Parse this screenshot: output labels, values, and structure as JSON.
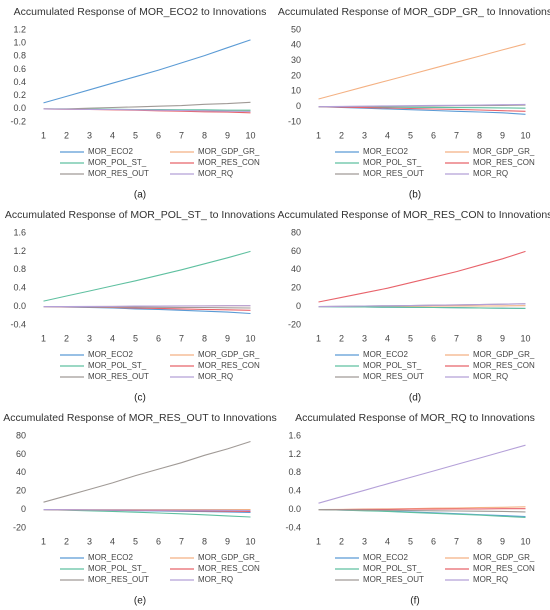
{
  "chart_data": [
    {
      "type": "line",
      "title": "Accumulated Response of MOR_ECO2 to Innovations",
      "caption": "(a)",
      "categories": [
        "1",
        "2",
        "3",
        "4",
        "5",
        "6",
        "7",
        "8",
        "9",
        "10"
      ],
      "ylim": [
        -0.2,
        1.2
      ],
      "yticks": [
        -0.2,
        {
          "value": 0,
          "label": "0.0"
        },
        0.2,
        0.4,
        0.6,
        0.8,
        {
          "value": 1,
          "label": "1.0"
        },
        1.2
      ],
      "grid": false,
      "legend": "bottom",
      "series": [
        {
          "name": "MOR_ECO2",
          "color": "#5b9bd5",
          "values": [
            0.09,
            0.19,
            0.29,
            0.39,
            0.49,
            0.59,
            0.7,
            0.81,
            0.93,
            1.05
          ]
        },
        {
          "name": "MOR_GDP_GR_",
          "color": "#f4b183",
          "values": [
            0,
            -0.005,
            -0.01,
            -0.01,
            -0.015,
            -0.02,
            -0.02,
            -0.025,
            -0.03,
            -0.03
          ]
        },
        {
          "name": "MOR_POL_ST_",
          "color": "#5fc0a0",
          "values": [
            0,
            0,
            -0.005,
            -0.005,
            -0.01,
            -0.01,
            -0.015,
            -0.015,
            -0.02,
            -0.02
          ]
        },
        {
          "name": "MOR_RES_CON",
          "color": "#e8636b",
          "values": [
            0,
            -0.005,
            -0.01,
            -0.015,
            -0.02,
            -0.03,
            -0.035,
            -0.045,
            -0.05,
            -0.06
          ]
        },
        {
          "name": "MOR_RES_OUT",
          "color": "#a09a96",
          "values": [
            0,
            0,
            0.01,
            0.02,
            0.03,
            0.04,
            0.05,
            0.07,
            0.08,
            0.1
          ]
        },
        {
          "name": "MOR_RQ",
          "color": "#b4a0d8",
          "values": [
            0,
            -0.005,
            -0.01,
            -0.01,
            -0.015,
            -0.02,
            -0.025,
            -0.03,
            -0.035,
            -0.04
          ]
        }
      ]
    },
    {
      "type": "line",
      "title": "Accumulated Response of MOR_GDP_GR_ to Innovations",
      "caption": "(b)",
      "categories": [
        "1",
        "2",
        "3",
        "4",
        "5",
        "6",
        "7",
        "8",
        "9",
        "10"
      ],
      "ylim": [
        -10,
        50
      ],
      "yticks": [
        -10,
        0,
        10,
        20,
        30,
        40,
        50
      ],
      "grid": false,
      "legend": "bottom",
      "series": [
        {
          "name": "MOR_ECO2",
          "color": "#5b9bd5",
          "values": [
            0,
            -0.5,
            -1,
            -1.5,
            -2,
            -2.5,
            -3,
            -3.5,
            -4,
            -5
          ]
        },
        {
          "name": "MOR_GDP_GR_",
          "color": "#f4b183",
          "values": [
            5,
            9,
            13,
            17,
            21,
            25,
            29,
            33,
            37,
            41
          ]
        },
        {
          "name": "MOR_POL_ST_",
          "color": "#5fc0a0",
          "values": [
            0,
            -0.1,
            -0.2,
            -0.3,
            -0.4,
            -0.5,
            -0.6,
            -0.7,
            -0.8,
            -1
          ]
        },
        {
          "name": "MOR_RES_CON",
          "color": "#e8636b",
          "values": [
            0,
            -0.3,
            -0.6,
            -0.9,
            -1.2,
            -1.5,
            -1.8,
            -2.2,
            -2.6,
            -3
          ]
        },
        {
          "name": "MOR_RES_OUT",
          "color": "#a09a96",
          "values": [
            0,
            0.1,
            0.2,
            0.3,
            0.4,
            0.5,
            0.6,
            0.7,
            0.8,
            1
          ]
        },
        {
          "name": "MOR_RQ",
          "color": "#b4a0d8",
          "values": [
            0,
            0.2,
            0.3,
            0.5,
            0.6,
            0.8,
            0.9,
            1.1,
            1.3,
            1.5
          ]
        }
      ]
    },
    {
      "type": "line",
      "title": "Accumulated Response of MOR_POL_ST_ to Innovations",
      "caption": "(c)",
      "categories": [
        "1",
        "2",
        "3",
        "4",
        "5",
        "6",
        "7",
        "8",
        "9",
        "10"
      ],
      "ylim": [
        -0.4,
        1.6
      ],
      "yticks": [
        -0.4,
        {
          "value": 0,
          "label": "0.0"
        },
        0.4,
        0.8,
        1.2,
        1.6
      ],
      "grid": false,
      "legend": "bottom",
      "series": [
        {
          "name": "MOR_ECO2",
          "color": "#5b9bd5",
          "values": [
            0,
            -0.01,
            -0.02,
            -0.03,
            -0.05,
            -0.06,
            -0.08,
            -0.1,
            -0.12,
            -0.15
          ]
        },
        {
          "name": "MOR_GDP_GR_",
          "color": "#f4b183",
          "values": [
            0,
            0,
            0,
            0.005,
            0.005,
            0.01,
            0.01,
            0.015,
            0.02,
            0.02
          ]
        },
        {
          "name": "MOR_POL_ST_",
          "color": "#5fc0a0",
          "values": [
            0.12,
            0.23,
            0.34,
            0.45,
            0.56,
            0.68,
            0.8,
            0.93,
            1.06,
            1.2
          ]
        },
        {
          "name": "MOR_RES_CON",
          "color": "#e8636b",
          "values": [
            0,
            -0.005,
            -0.01,
            -0.02,
            -0.03,
            -0.04,
            -0.05,
            -0.06,
            -0.07,
            -0.08
          ]
        },
        {
          "name": "MOR_RES_OUT",
          "color": "#a09a96",
          "values": [
            0,
            0,
            -0.005,
            -0.01,
            -0.01,
            -0.015,
            -0.02,
            -0.02,
            -0.025,
            -0.03
          ]
        },
        {
          "name": "MOR_RQ",
          "color": "#b4a0d8",
          "values": [
            0,
            0,
            0.005,
            0.005,
            0.01,
            0.01,
            0.015,
            0.015,
            0.02,
            0.02
          ]
        }
      ]
    },
    {
      "type": "line",
      "title": "Accumulated Response of MOR_RES_CON to Innovations",
      "caption": "(d)",
      "categories": [
        "1",
        "2",
        "3",
        "4",
        "5",
        "6",
        "7",
        "8",
        "9",
        "10"
      ],
      "ylim": [
        -20,
        80
      ],
      "yticks": [
        -20,
        0,
        20,
        40,
        60,
        80
      ],
      "grid": false,
      "legend": "bottom",
      "series": [
        {
          "name": "MOR_ECO2",
          "color": "#5b9bd5",
          "values": [
            0,
            -0.2,
            -0.4,
            -0.6,
            -0.8,
            -1,
            -1.2,
            -1.5,
            -1.7,
            -2
          ]
        },
        {
          "name": "MOR_GDP_GR_",
          "color": "#f4b183",
          "values": [
            0,
            0.1,
            0.2,
            0.3,
            0.4,
            0.5,
            0.6,
            0.7,
            0.8,
            1
          ]
        },
        {
          "name": "MOR_POL_ST_",
          "color": "#5fc0a0",
          "values": [
            0,
            -0.2,
            -0.4,
            -0.6,
            -0.8,
            -1,
            -1.2,
            -1.4,
            -1.7,
            -2
          ]
        },
        {
          "name": "MOR_RES_CON",
          "color": "#e8636b",
          "values": [
            5,
            10,
            15,
            20,
            26,
            32,
            38,
            45,
            52,
            60
          ]
        },
        {
          "name": "MOR_RES_OUT",
          "color": "#a09a96",
          "values": [
            0,
            0.3,
            0.6,
            0.9,
            1.2,
            1.5,
            1.9,
            2.2,
            2.6,
            3
          ]
        },
        {
          "name": "MOR_RQ",
          "color": "#b4a0d8",
          "values": [
            0,
            0.3,
            0.6,
            0.9,
            1.2,
            1.5,
            1.8,
            2.2,
            2.6,
            3
          ]
        }
      ]
    },
    {
      "type": "line",
      "title": "Accumulated Response of MOR_RES_OUT to Innovations",
      "caption": "(e)",
      "categories": [
        "1",
        "2",
        "3",
        "4",
        "5",
        "6",
        "7",
        "8",
        "9",
        "10"
      ],
      "ylim": [
        -20,
        80
      ],
      "yticks": [
        -20,
        0,
        20,
        40,
        60,
        80
      ],
      "grid": false,
      "legend": "bottom",
      "series": [
        {
          "name": "MOR_ECO2",
          "color": "#5b9bd5",
          "values": [
            0,
            -0.3,
            -0.6,
            -0.9,
            -1.2,
            -1.5,
            -1.9,
            -2.2,
            -2.6,
            -3
          ]
        },
        {
          "name": "MOR_GDP_GR_",
          "color": "#f4b183",
          "values": [
            0,
            0,
            0,
            0,
            0,
            0,
            0,
            0,
            0,
            0
          ]
        },
        {
          "name": "MOR_POL_ST_",
          "color": "#5fc0a0",
          "values": [
            0,
            -0.6,
            -1.3,
            -2,
            -2.8,
            -3.7,
            -4.6,
            -5.6,
            -6.8,
            -8
          ]
        },
        {
          "name": "MOR_RES_CON",
          "color": "#e8636b",
          "values": [
            0,
            -0.2,
            -0.4,
            -0.6,
            -0.8,
            -1,
            -1.2,
            -1.5,
            -1.7,
            -2
          ]
        },
        {
          "name": "MOR_RES_OUT",
          "color": "#a09a96",
          "values": [
            8,
            15,
            22,
            29,
            37,
            44,
            51,
            59,
            66,
            74
          ]
        },
        {
          "name": "MOR_RQ",
          "color": "#b4a0d8",
          "values": [
            0,
            -0.1,
            -0.2,
            -0.3,
            -0.4,
            -0.5,
            -0.6,
            -0.7,
            -0.8,
            -1
          ]
        }
      ]
    },
    {
      "type": "line",
      "title": "Accumulated Response of MOR_RQ to Innovations",
      "caption": "(f)",
      "categories": [
        "1",
        "2",
        "3",
        "4",
        "5",
        "6",
        "7",
        "8",
        "9",
        "10"
      ],
      "ylim": [
        -0.4,
        1.6
      ],
      "yticks": [
        -0.4,
        {
          "value": 0,
          "label": "0.0"
        },
        0.4,
        0.8,
        1.2,
        1.6
      ],
      "grid": false,
      "legend": "bottom",
      "series": [
        {
          "name": "MOR_ECO2",
          "color": "#5b9bd5",
          "values": [
            0,
            -0.01,
            -0.02,
            -0.035,
            -0.05,
            -0.07,
            -0.09,
            -0.11,
            -0.13,
            -0.15
          ]
        },
        {
          "name": "MOR_GDP_GR_",
          "color": "#f4b183",
          "values": [
            0,
            0.005,
            0.01,
            0.015,
            0.02,
            0.03,
            0.035,
            0.045,
            0.05,
            0.06
          ]
        },
        {
          "name": "MOR_POL_ST_",
          "color": "#5fc0a0",
          "values": [
            0,
            -0.01,
            -0.025,
            -0.04,
            -0.06,
            -0.08,
            -0.1,
            -0.12,
            -0.145,
            -0.17
          ]
        },
        {
          "name": "MOR_RES_CON",
          "color": "#e8636b",
          "values": [
            0,
            0,
            0.005,
            0.005,
            0.01,
            0.01,
            0.015,
            0.015,
            0.02,
            0.02
          ]
        },
        {
          "name": "MOR_RES_OUT",
          "color": "#a09a96",
          "values": [
            0,
            -0.005,
            -0.01,
            -0.015,
            -0.02,
            -0.025,
            -0.03,
            -0.035,
            -0.04,
            -0.05
          ]
        },
        {
          "name": "MOR_RQ",
          "color": "#b4a0d8",
          "values": [
            0.14,
            0.28,
            0.42,
            0.56,
            0.7,
            0.84,
            0.98,
            1.12,
            1.26,
            1.4
          ]
        }
      ]
    }
  ]
}
